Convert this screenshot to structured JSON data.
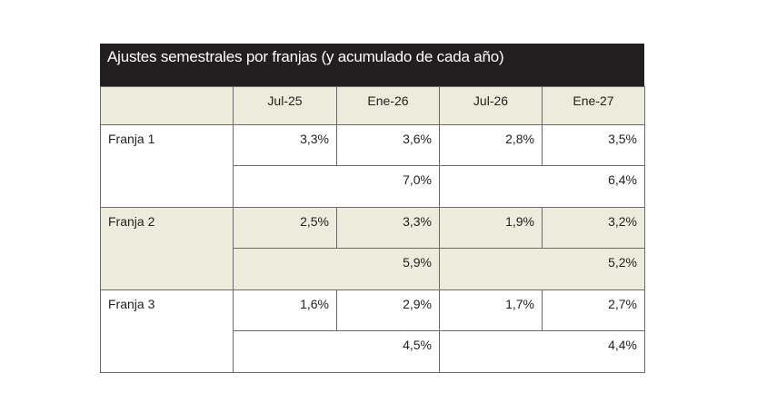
{
  "title": "Ajustes semestrales por franjas (y acumulado de cada año)",
  "table": {
    "columns": [
      "Jul-25",
      "Ene-26",
      "Jul-26",
      "Ene-27"
    ],
    "rows": [
      {
        "label": "Franja 1",
        "values": [
          "3,3%",
          "3,6%",
          "2,8%",
          "3,5%"
        ],
        "accumulated": [
          "7,0%",
          "6,4%"
        ]
      },
      {
        "label": "Franja 2",
        "values": [
          "2,5%",
          "3,3%",
          "1,9%",
          "3,2%"
        ],
        "accumulated": [
          "5,9%",
          "5,2%"
        ]
      },
      {
        "label": "Franja 3",
        "values": [
          "1,6%",
          "2,9%",
          "1,7%",
          "2,7%"
        ],
        "accumulated": [
          "4,5%",
          "4,4%"
        ]
      }
    ]
  }
}
